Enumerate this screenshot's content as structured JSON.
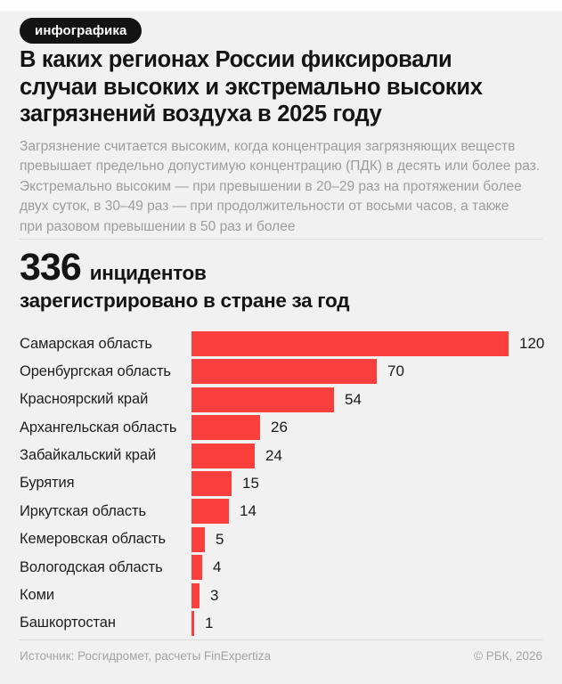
{
  "badge": {
    "label": "инфографика"
  },
  "header": {
    "title_lines": [
      "В каких регионах России фиксировали",
      "случаи высоких и экстремально высоких",
      "загрязнений воздуха в 2025 году"
    ],
    "subtitle_lines": [
      "Загрязнение считается высоким, когда концентрация загрязняющих веществ",
      "превышает предельно допустимую концентрацию (ПДК) в десять или более раз.",
      "Экстремально высоким — при превышении в 20–29 раз на протяжении более",
      "двух суток, в 30–49 раз — при продолжительности от восьми часов, а также",
      "при разовом превышении в 50 раз и более"
    ]
  },
  "stat": {
    "number": "336",
    "unit": "инцидентов",
    "line2": "зарегистрировано в стране за год"
  },
  "chart_data": {
    "type": "bar",
    "orientation": "horizontal",
    "title": "336 инцидентов зарегистрировано в стране за год",
    "categories": [
      "Самарская область",
      "Оренбургская область",
      "Красноярский край",
      "Архангельская область",
      "Забайкальский край",
      "Бурятия",
      "Иркутская область",
      "Кемеровская область",
      "Вологодская область",
      "Коми",
      "Башкортостан"
    ],
    "values": [
      120,
      70,
      54,
      26,
      24,
      15,
      14,
      5,
      4,
      3,
      1
    ],
    "xlim": [
      0,
      120
    ],
    "grid": false,
    "legend": false,
    "bar_color": "#fa3f3c",
    "value_labels": true
  },
  "colors": {
    "background": "#f1f1f2",
    "badge_bg": "#131313",
    "badge_text": "#ffffff",
    "title_text": "#141414",
    "muted_text": "#9d9d9d",
    "accent_red": "#fa3f3c"
  },
  "footer": {
    "source": "Источник: Росгидромет, расчеты FinExpertiza",
    "copyright": "© РБК, 2026"
  }
}
